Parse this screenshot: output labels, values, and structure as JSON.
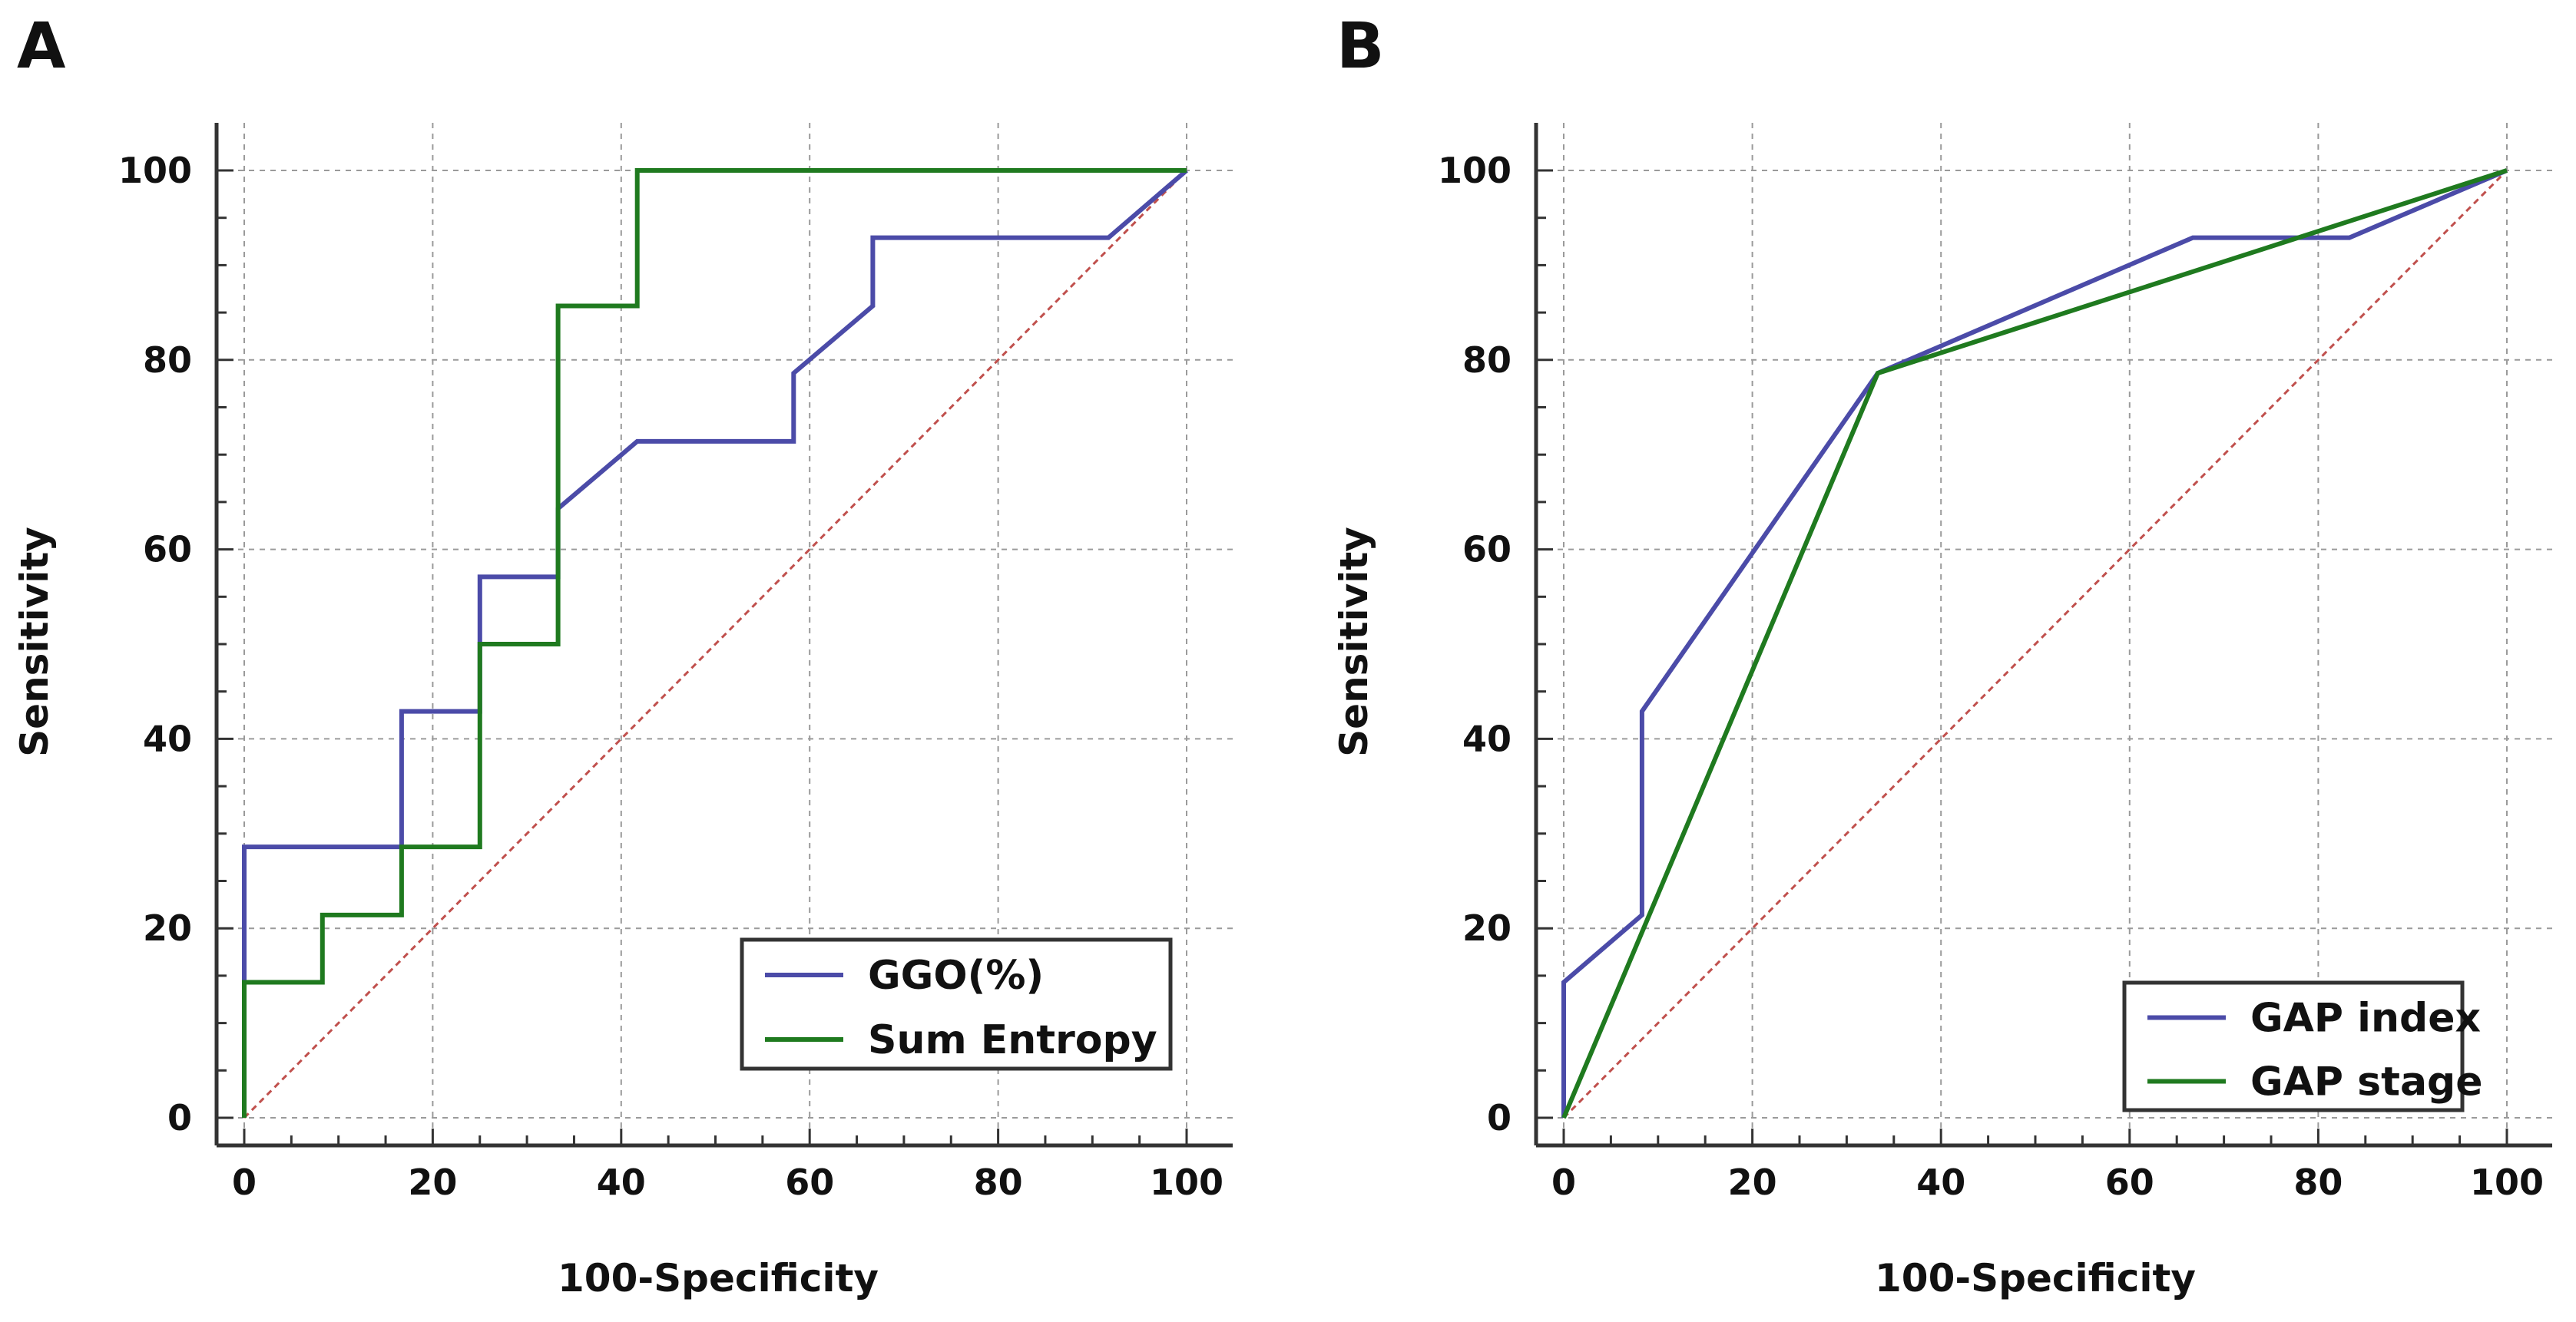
{
  "chart_data": [
    {
      "panel_label": "A",
      "type": "line",
      "chart_subtype": "roc-step",
      "xlabel": "100-Specificity",
      "ylabel": "Sensitivity",
      "xlim": [
        0,
        100
      ],
      "ylim": [
        0,
        100
      ],
      "xticks": [
        "0",
        "20",
        "40",
        "60",
        "80",
        "100"
      ],
      "yticks": [
        "0",
        "20",
        "40",
        "60",
        "80",
        "100"
      ],
      "grid": true,
      "legend_position": "bottom-right",
      "reference_line": {
        "name": "chance",
        "x": [
          0,
          100
        ],
        "y": [
          0,
          100
        ],
        "color": "#c0504d"
      },
      "series": [
        {
          "name": "GGO(%)",
          "color": "#4b4ba8",
          "x": [
            0,
            0,
            16.7,
            16.7,
            25,
            25,
            33.3,
            33.3,
            41.7,
            58.3,
            58.3,
            66.7,
            66.7,
            91.7,
            100
          ],
          "y": [
            0,
            28.6,
            28.6,
            42.9,
            42.9,
            57.1,
            57.1,
            64.3,
            71.4,
            71.4,
            78.6,
            85.7,
            92.9,
            92.9,
            100
          ]
        },
        {
          "name": "Sum Entropy",
          "color": "#1f7a1f",
          "x": [
            0,
            0,
            8.3,
            8.3,
            16.7,
            16.7,
            25,
            25,
            33.3,
            33.3,
            41.7,
            41.7,
            100
          ],
          "y": [
            0,
            14.3,
            14.3,
            21.4,
            21.4,
            28.6,
            28.6,
            50,
            50,
            85.7,
            85.7,
            100,
            100
          ]
        }
      ]
    },
    {
      "panel_label": "B",
      "type": "line",
      "chart_subtype": "roc",
      "xlabel": "100-Specificity",
      "ylabel": "Sensitivity",
      "xlim": [
        0,
        100
      ],
      "ylim": [
        0,
        100
      ],
      "xticks": [
        "0",
        "20",
        "40",
        "60",
        "80",
        "100"
      ],
      "yticks": [
        "0",
        "20",
        "40",
        "60",
        "80",
        "100"
      ],
      "grid": true,
      "legend_position": "bottom-right",
      "reference_line": {
        "name": "chance",
        "x": [
          0,
          100
        ],
        "y": [
          0,
          100
        ],
        "color": "#c0504d"
      },
      "series": [
        {
          "name": "GAP index",
          "color": "#4b4ba8",
          "x": [
            0,
            0,
            8.3,
            8.3,
            33.3,
            66.7,
            83.3,
            100
          ],
          "y": [
            0,
            14.3,
            21.4,
            42.9,
            78.6,
            92.9,
            92.9,
            100
          ]
        },
        {
          "name": "GAP stage",
          "color": "#1f7a1f",
          "x": [
            0,
            33.3,
            100
          ],
          "y": [
            0,
            78.6,
            100
          ]
        }
      ]
    }
  ]
}
